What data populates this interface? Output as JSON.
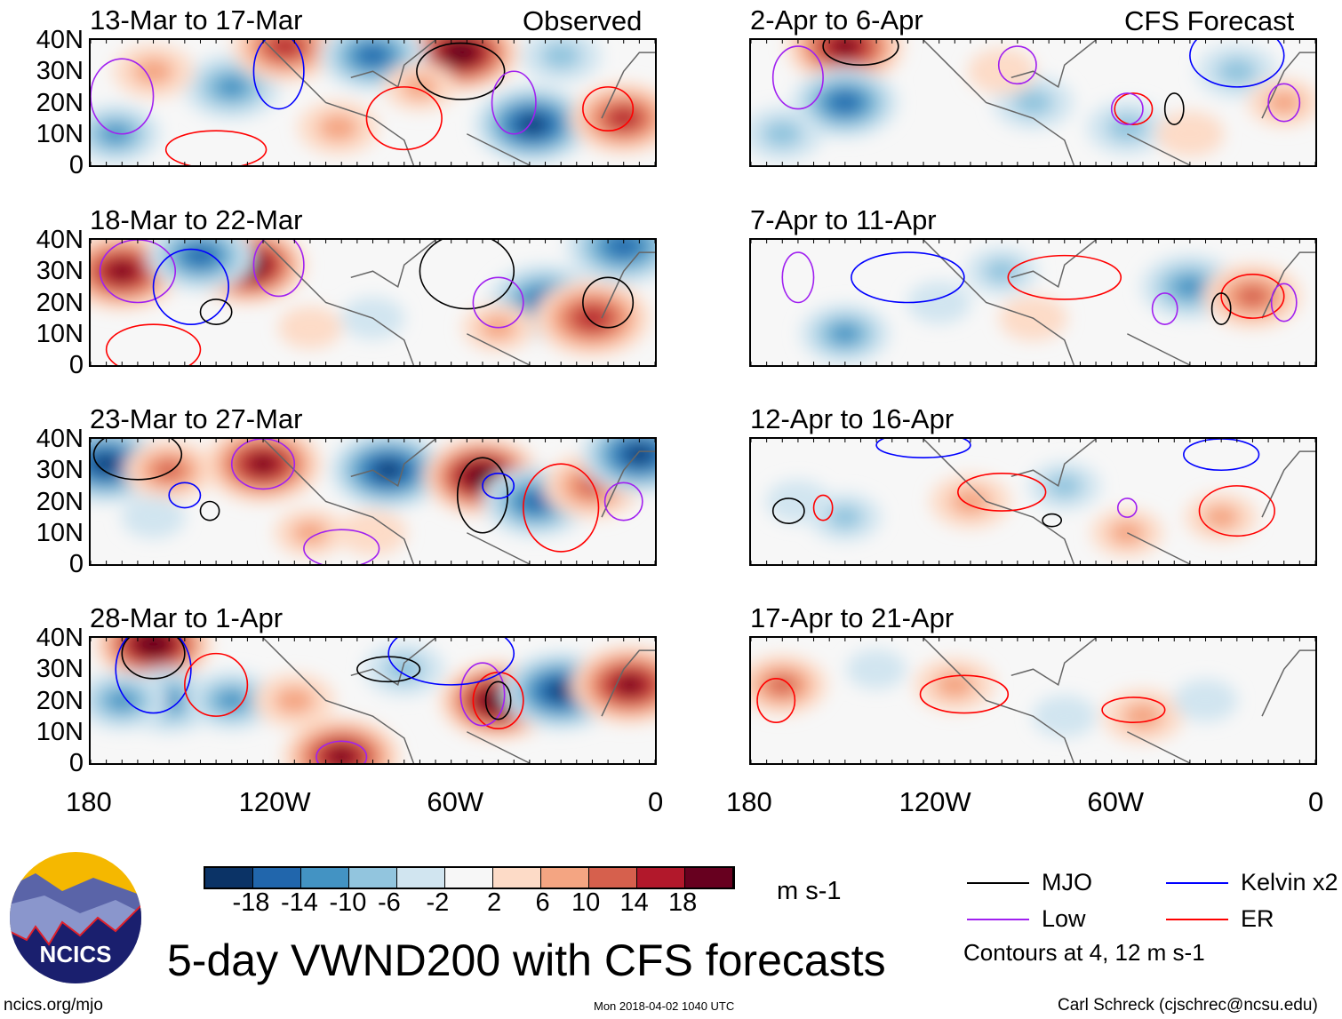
{
  "header": {
    "left_label": "Observed",
    "right_label": "CFS Forecast"
  },
  "panels": [
    {
      "title": "13-Mar to 17-Mar",
      "blobs": [
        [
          -62,
          36,
          22
        ],
        [
          -39,
          13,
          -18
        ],
        [
          -135,
          25,
          -12
        ],
        [
          -10,
          15,
          14
        ],
        [
          -118,
          38,
          14
        ],
        [
          -172,
          10,
          -10
        ],
        [
          -90,
          35,
          -14
        ],
        [
          -101,
          12,
          8
        ],
        [
          -160,
          30,
          8
        ],
        [
          -75,
          25,
          6
        ],
        [
          -30,
          35,
          -8
        ]
      ],
      "contours": [
        [
          -62,
          30,
          14,
          9,
          "mjo"
        ],
        [
          -170,
          22,
          10,
          12,
          "low"
        ],
        [
          -120,
          30,
          8,
          12,
          "kelvin"
        ],
        [
          -45,
          20,
          7,
          10,
          "low"
        ],
        [
          -15,
          18,
          8,
          7,
          "er"
        ],
        [
          -80,
          15,
          12,
          10,
          "er"
        ],
        [
          -140,
          5,
          16,
          6,
          "er"
        ]
      ]
    },
    {
      "title": "2-Apr to 6-Apr",
      "blobs": [
        [
          -150,
          38,
          18
        ],
        [
          -150,
          20,
          -14
        ],
        [
          -170,
          10,
          -8
        ],
        [
          -90,
          20,
          -8
        ],
        [
          -60,
          12,
          -8
        ],
        [
          -25,
          30,
          -8
        ],
        [
          -100,
          30,
          5
        ],
        [
          -40,
          10,
          5
        ],
        [
          -10,
          20,
          6
        ]
      ],
      "contours": [
        [
          -145,
          38,
          12,
          6,
          "mjo"
        ],
        [
          -165,
          28,
          8,
          10,
          "low"
        ],
        [
          -95,
          32,
          6,
          6,
          "low"
        ],
        [
          -58,
          18,
          6,
          5,
          "er"
        ],
        [
          -60,
          18,
          5,
          5,
          "low"
        ],
        [
          -25,
          35,
          15,
          10,
          "kelvin"
        ],
        [
          -45,
          18,
          3,
          5,
          "mjo"
        ],
        [
          -10,
          20,
          5,
          6,
          "low"
        ]
      ]
    },
    {
      "title": "18-Mar to 22-Mar",
      "blobs": [
        [
          -170,
          30,
          20
        ],
        [
          -130,
          32,
          22
        ],
        [
          -145,
          35,
          -14
        ],
        [
          -35,
          20,
          -16
        ],
        [
          -20,
          15,
          16
        ],
        [
          -10,
          38,
          -16
        ],
        [
          -90,
          15,
          -4
        ],
        [
          -50,
          12,
          6
        ],
        [
          -110,
          12,
          4
        ]
      ],
      "contours": [
        [
          -165,
          30,
          12,
          10,
          "low"
        ],
        [
          -148,
          25,
          12,
          12,
          "kelvin"
        ],
        [
          -140,
          17,
          5,
          4,
          "mjo"
        ],
        [
          -120,
          32,
          8,
          10,
          "low"
        ],
        [
          -60,
          30,
          15,
          12,
          "mjo"
        ],
        [
          -50,
          20,
          8,
          8,
          "low"
        ],
        [
          -15,
          20,
          8,
          8,
          "mjo"
        ],
        [
          -160,
          5,
          15,
          8,
          "er"
        ]
      ]
    },
    {
      "title": "7-Apr to 11-Apr",
      "blobs": [
        [
          -150,
          10,
          -10
        ],
        [
          -40,
          25,
          -12
        ],
        [
          -20,
          22,
          12
        ],
        [
          -90,
          15,
          5
        ],
        [
          -100,
          30,
          -6
        ],
        [
          -120,
          20,
          -4
        ]
      ],
      "contours": [
        [
          -130,
          28,
          18,
          8,
          "kelvin"
        ],
        [
          -80,
          28,
          18,
          7,
          "er"
        ],
        [
          -20,
          22,
          10,
          7,
          "er"
        ],
        [
          -165,
          28,
          5,
          8,
          "low"
        ],
        [
          -48,
          18,
          4,
          5,
          "low"
        ],
        [
          -30,
          18,
          3,
          5,
          "mjo"
        ],
        [
          -10,
          20,
          4,
          6,
          "low"
        ]
      ]
    },
    {
      "title": "23-Mar to 27-Mar",
      "blobs": [
        [
          -175,
          32,
          -20
        ],
        [
          -155,
          30,
          10
        ],
        [
          -125,
          32,
          20
        ],
        [
          -85,
          30,
          -18
        ],
        [
          -55,
          28,
          22
        ],
        [
          -38,
          20,
          -14
        ],
        [
          -20,
          25,
          12
        ],
        [
          -5,
          35,
          -18
        ],
        [
          -110,
          10,
          6
        ],
        [
          -90,
          10,
          5
        ],
        [
          -160,
          15,
          -4
        ]
      ],
      "contours": [
        [
          -165,
          35,
          14,
          8,
          "mjo"
        ],
        [
          -125,
          32,
          10,
          8,
          "low"
        ],
        [
          -55,
          22,
          8,
          12,
          "mjo"
        ],
        [
          -50,
          25,
          5,
          4,
          "kelvin"
        ],
        [
          -30,
          18,
          12,
          14,
          "er"
        ],
        [
          -150,
          22,
          5,
          4,
          "kelvin"
        ],
        [
          -142,
          17,
          3,
          3,
          "mjo"
        ],
        [
          -10,
          20,
          6,
          6,
          "low"
        ],
        [
          -100,
          5,
          12,
          6,
          "low"
        ]
      ]
    },
    {
      "title": "12-Apr to 16-Apr",
      "blobs": [
        [
          -110,
          20,
          8
        ],
        [
          -165,
          20,
          -4
        ],
        [
          -150,
          15,
          -6
        ],
        [
          -60,
          10,
          6
        ],
        [
          -30,
          15,
          6
        ],
        [
          -80,
          25,
          -6
        ]
      ],
      "contours": [
        [
          -100,
          23,
          14,
          6,
          "er"
        ],
        [
          -168,
          17,
          5,
          4,
          "mjo"
        ],
        [
          -157,
          18,
          3,
          4,
          "er"
        ],
        [
          -25,
          17,
          12,
          8,
          "er"
        ],
        [
          -30,
          35,
          12,
          5,
          "kelvin"
        ],
        [
          -125,
          38,
          15,
          4,
          "kelvin"
        ],
        [
          -84,
          14,
          3,
          2,
          "mjo"
        ],
        [
          -60,
          18,
          3,
          3,
          "low"
        ]
      ]
    },
    {
      "title": "28-Mar to 1-Apr",
      "blobs": [
        [
          -160,
          38,
          22
        ],
        [
          -155,
          20,
          -12
        ],
        [
          -135,
          20,
          -10
        ],
        [
          -115,
          20,
          8
        ],
        [
          -50,
          20,
          22
        ],
        [
          -30,
          23,
          -20
        ],
        [
          -8,
          25,
          18
        ],
        [
          -100,
          2,
          18
        ],
        [
          -80,
          30,
          -8
        ],
        [
          -170,
          20,
          -10
        ]
      ],
      "contours": [
        [
          -160,
          35,
          10,
          8,
          "mjo"
        ],
        [
          -160,
          30,
          12,
          14,
          "kelvin"
        ],
        [
          -140,
          25,
          10,
          10,
          "er"
        ],
        [
          -50,
          20,
          8,
          9,
          "er"
        ],
        [
          -55,
          22,
          7,
          10,
          "low"
        ],
        [
          -50,
          20,
          4,
          6,
          "mjo"
        ],
        [
          -85,
          30,
          10,
          4,
          "mjo"
        ],
        [
          -65,
          35,
          20,
          10,
          "kelvin"
        ],
        [
          -100,
          2,
          8,
          5,
          "low"
        ]
      ]
    },
    {
      "title": "17-Apr to 21-Apr",
      "blobs": [
        [
          -170,
          25,
          10
        ],
        [
          -115,
          25,
          8
        ],
        [
          -55,
          15,
          8
        ],
        [
          -80,
          15,
          -4
        ],
        [
          -35,
          20,
          -4
        ],
        [
          -140,
          30,
          -3
        ]
      ],
      "contours": [
        [
          -172,
          20,
          6,
          7,
          "er"
        ],
        [
          -112,
          22,
          14,
          6,
          "er"
        ],
        [
          -58,
          17,
          10,
          4,
          "er"
        ]
      ]
    }
  ],
  "axes": {
    "lat_ticks": [
      "40N",
      "30N",
      "20N",
      "10N",
      "0"
    ],
    "lon_ticks": [
      "180",
      "120W",
      "60W",
      "0"
    ]
  },
  "colorbar": {
    "colors": [
      "#0b3366",
      "#2166ac",
      "#4393c3",
      "#92c5de",
      "#d1e5f0",
      "#f7f7f7",
      "#fddbc7",
      "#f4a582",
      "#d6604d",
      "#b2182b",
      "#67001f"
    ],
    "labels": [
      "-18",
      "-14",
      "-10",
      "-6",
      "-2",
      "2",
      "6",
      "10",
      "14",
      "18"
    ],
    "units": "m s-1"
  },
  "legend": {
    "items": [
      {
        "label": "MJO",
        "color": "#000000"
      },
      {
        "label": "Kelvin x2",
        "color": "#0000ff"
      },
      {
        "label": "Low",
        "color": "#a020f0"
      },
      {
        "label": "ER",
        "color": "#ff0000"
      }
    ],
    "note": "Contours at 4, 12 m s-1"
  },
  "title": "5-day VWND200 with CFS forecasts",
  "logo_text": "NCICS",
  "footer": {
    "left": "ncics.org/mjo",
    "center": "Mon 2018-04-02 1040 UTC",
    "right": "Carl Schreck (cjschrec@ncsu.edu)"
  }
}
